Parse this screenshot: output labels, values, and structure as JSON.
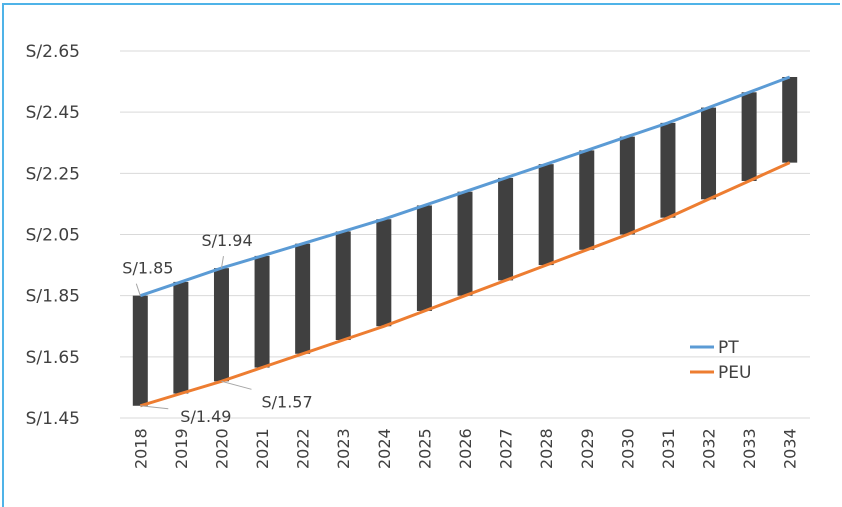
{
  "chart_data": {
    "type": "line",
    "categories": [
      "2018",
      "2019",
      "2020",
      "2021",
      "2022",
      "2023",
      "2024",
      "2025",
      "2026",
      "2027",
      "2028",
      "2029",
      "2030",
      "2031",
      "2032",
      "2033",
      "2034"
    ],
    "series": [
      {
        "name": "PT",
        "color": "#5b9bd5",
        "values": [
          1.85,
          1.895,
          1.94,
          1.98,
          2.02,
          2.06,
          2.1,
          2.145,
          2.19,
          2.235,
          2.28,
          2.325,
          2.37,
          2.415,
          2.465,
          2.515,
          2.565
        ]
      },
      {
        "name": "PEU",
        "color": "#ed7d31",
        "values": [
          1.49,
          1.53,
          1.57,
          1.615,
          1.66,
          1.705,
          1.75,
          1.8,
          1.85,
          1.9,
          1.95,
          2.0,
          2.05,
          2.105,
          2.165,
          2.225,
          2.285
        ]
      }
    ],
    "gap_bar_color": "#404040",
    "y_ticks": [
      "S/1.45",
      "S/1.65",
      "S/1.85",
      "S/2.05",
      "S/2.25",
      "S/2.45",
      "S/2.65"
    ],
    "y_tick_values": [
      1.45,
      1.65,
      1.85,
      2.05,
      2.25,
      2.45,
      2.65
    ],
    "ylim": [
      1.45,
      2.65
    ],
    "grid": true,
    "legend_position": "right",
    "annotations": [
      {
        "text": "S/1.85",
        "category": "2018",
        "series": "PT"
      },
      {
        "text": "S/1.94",
        "category": "2020",
        "series": "PT"
      },
      {
        "text": "S/1.57",
        "category": "2020",
        "series": "PEU"
      },
      {
        "text": "S/1.49",
        "category": "2018",
        "series": "PEU"
      }
    ],
    "title": "",
    "xlabel": "",
    "ylabel": ""
  },
  "frame_color": "#4fb3e8"
}
